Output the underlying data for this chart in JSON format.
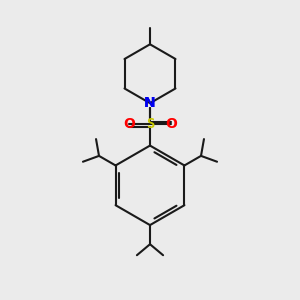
{
  "bg_color": "#ebebeb",
  "bond_color": "#1a1a1a",
  "N_color": "#0000ee",
  "S_color": "#cccc00",
  "O_color": "#ff0000",
  "bond_width": 1.5,
  "fig_size": [
    3.0,
    3.0
  ],
  "dpi": 100,
  "xlim": [
    0,
    10
  ],
  "ylim": [
    0,
    10
  ]
}
